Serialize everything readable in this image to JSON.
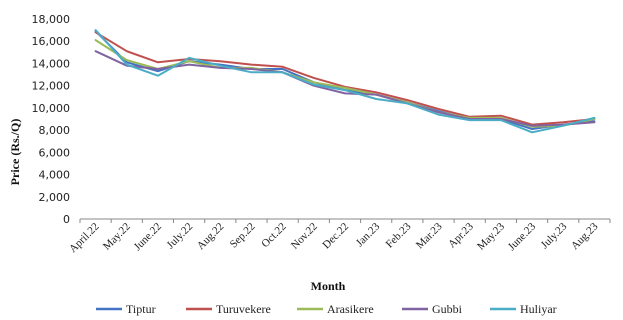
{
  "chart_data": {
    "type": "line",
    "xlabel": "Month",
    "ylabel": "Price (Rs./Q)",
    "ylim": [
      0,
      18000
    ],
    "yticks": [
      0,
      2000,
      4000,
      6000,
      8000,
      10000,
      12000,
      14000,
      16000,
      18000
    ],
    "ytick_labels": [
      "0",
      "2,000",
      "4,000",
      "6,000",
      "8,000",
      "10,000",
      "12,000",
      "14,000",
      "16,000",
      "18,000"
    ],
    "grid": false,
    "legend_position": "bottom",
    "categories": [
      "April.22",
      "May.22",
      "June.22",
      "July.22",
      "Aug.22",
      "Sep.22",
      "Oct.22",
      "Nov.22",
      "Dec.22",
      "Jan.23",
      "Feb.23",
      "Mar.23",
      "Apr.23",
      "May.23",
      "June.23",
      "July.23",
      "Aug.23"
    ],
    "series": [
      {
        "name": "Tiptur",
        "color": "#4472C4",
        "values": [
          16900,
          14100,
          13300,
          14200,
          13900,
          13500,
          13500,
          12300,
          11600,
          11200,
          10500,
          9700,
          9000,
          9000,
          8100,
          8500,
          8800
        ]
      },
      {
        "name": "Turuvekere",
        "color": "#C0504D",
        "values": [
          16800,
          15100,
          14100,
          14400,
          14200,
          13900,
          13700,
          12700,
          11900,
          11400,
          10700,
          9900,
          9200,
          9300,
          8500,
          8700,
          9000
        ]
      },
      {
        "name": "Arasikere",
        "color": "#9BBB59",
        "values": [
          16100,
          14300,
          13500,
          14200,
          13600,
          13600,
          13200,
          12300,
          11800,
          11200,
          10500,
          9600,
          9100,
          9100,
          8300,
          8400,
          9000
        ]
      },
      {
        "name": "Gubbi",
        "color": "#8064A2",
        "values": [
          15100,
          13800,
          13500,
          13900,
          13600,
          13500,
          13200,
          12000,
          11300,
          11200,
          10400,
          9600,
          9000,
          9000,
          8400,
          8500,
          8700
        ]
      },
      {
        "name": "Huliyar",
        "color": "#4BACC6",
        "values": [
          17000,
          13900,
          12900,
          14500,
          13800,
          13200,
          13200,
          12100,
          11600,
          10800,
          10400,
          9400,
          8900,
          8900,
          7800,
          8400,
          9100
        ]
      }
    ]
  }
}
